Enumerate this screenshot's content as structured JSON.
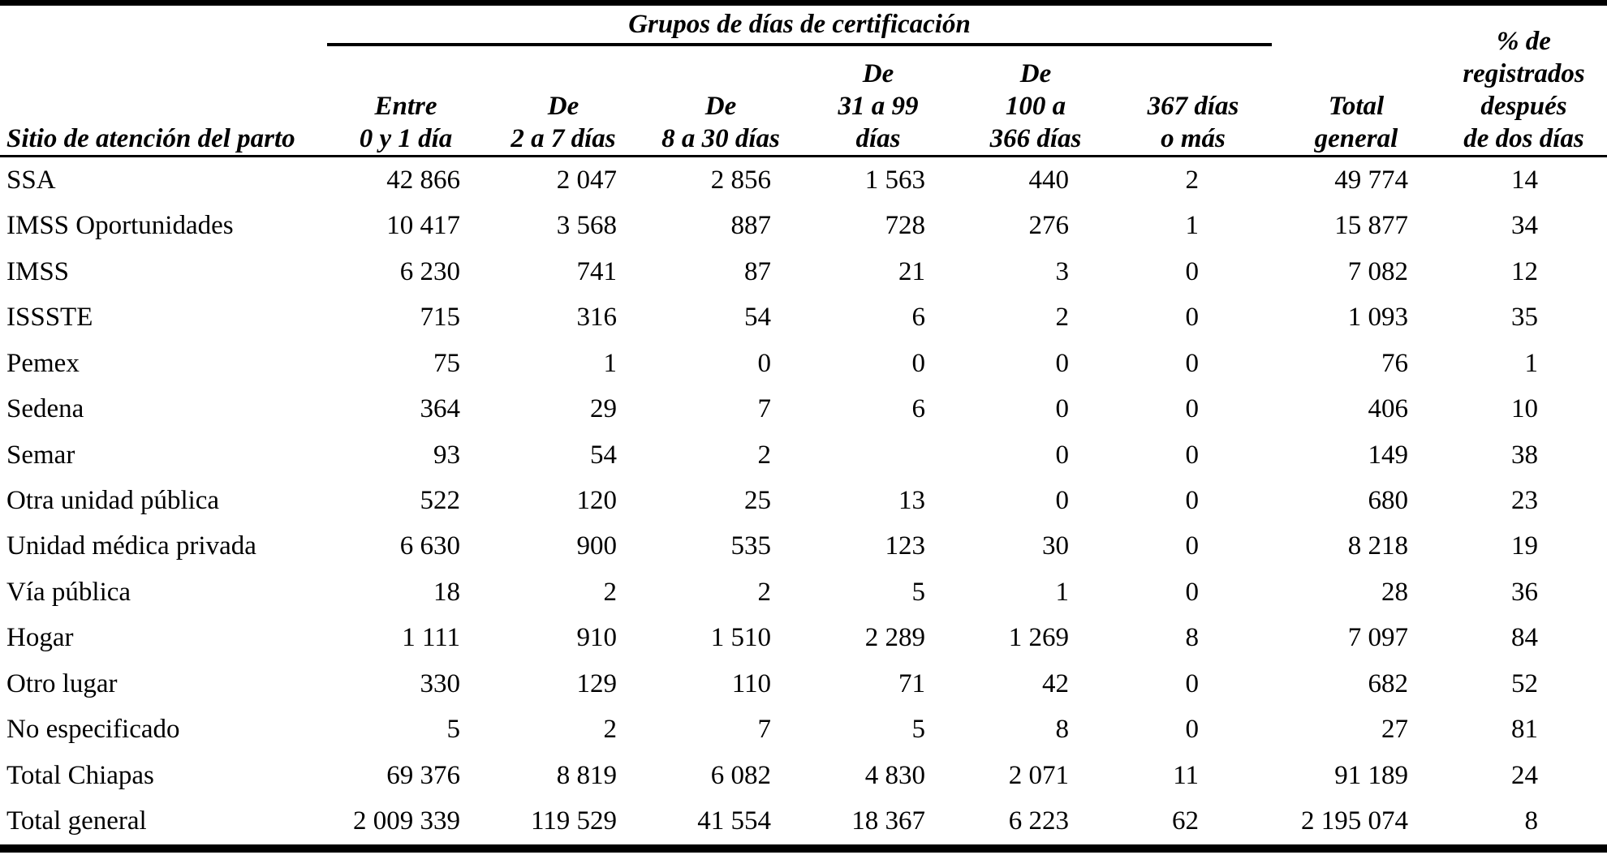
{
  "table": {
    "group_title": "Grupos de días de certificación",
    "row_header": "Sitio de atención del parto",
    "group_columns": [
      [
        "Entre",
        "0 y 1 día"
      ],
      [
        "De",
        "2 a 7 días"
      ],
      [
        "De",
        "8 a 30 días"
      ],
      [
        "De",
        "31 a 99",
        "días"
      ],
      [
        "De",
        "100 a",
        "366 días"
      ],
      [
        "367 días",
        "o más"
      ]
    ],
    "total_column": [
      "Total",
      "general"
    ],
    "pct_column": [
      "% de",
      "registrados",
      "después",
      "de dos días"
    ],
    "rows": [
      {
        "label": "SSA",
        "values": [
          "42 866",
          "2 047",
          "2 856",
          "1 563",
          "440",
          "2",
          "49 774",
          "14"
        ]
      },
      {
        "label": "IMSS Oportunidades",
        "values": [
          "10 417",
          "3 568",
          "887",
          "728",
          "276",
          "1",
          "15 877",
          "34"
        ]
      },
      {
        "label": "IMSS",
        "values": [
          "6 230",
          "741",
          "87",
          "21",
          "3",
          "0",
          "7 082",
          "12"
        ]
      },
      {
        "label": "ISSSTE",
        "values": [
          "715",
          "316",
          "54",
          "6",
          "2",
          "0",
          "1 093",
          "35"
        ]
      },
      {
        "label": "Pemex",
        "values": [
          "75",
          "1",
          "0",
          "0",
          "0",
          "0",
          "76",
          "1"
        ]
      },
      {
        "label": "Sedena",
        "values": [
          "364",
          "29",
          "7",
          "6",
          "0",
          "0",
          "406",
          "10"
        ]
      },
      {
        "label": "Semar",
        "values": [
          "93",
          "54",
          "2",
          "",
          "0",
          "0",
          "149",
          "38"
        ]
      },
      {
        "label": "Otra unidad pública",
        "values": [
          "522",
          "120",
          "25",
          "13",
          "0",
          "0",
          "680",
          "23"
        ]
      },
      {
        "label": "Unidad médica privada",
        "values": [
          "6 630",
          "900",
          "535",
          "123",
          "30",
          "0",
          "8 218",
          "19"
        ]
      },
      {
        "label": "Vía pública",
        "values": [
          "18",
          "2",
          "2",
          "5",
          "1",
          "0",
          "28",
          "36"
        ]
      },
      {
        "label": "Hogar",
        "values": [
          "1 111",
          "910",
          "1 510",
          "2 289",
          "1 269",
          "8",
          "7 097",
          "84"
        ]
      },
      {
        "label": "Otro lugar",
        "values": [
          "330",
          "129",
          "110",
          "71",
          "42",
          "0",
          "682",
          "52"
        ]
      },
      {
        "label": "No especificado",
        "values": [
          "5",
          "2",
          "7",
          "5",
          "8",
          "0",
          "27",
          "81"
        ]
      },
      {
        "label": "Total Chiapas",
        "values": [
          "69 376",
          "8 819",
          "6 082",
          "4 830",
          "2 071",
          "11",
          "91 189",
          "24"
        ]
      },
      {
        "label": "Total general",
        "values": [
          "2 009 339",
          "119 529",
          "41 554",
          "18 367",
          "6 223",
          "62",
          "2 195 074",
          "8"
        ]
      }
    ]
  }
}
